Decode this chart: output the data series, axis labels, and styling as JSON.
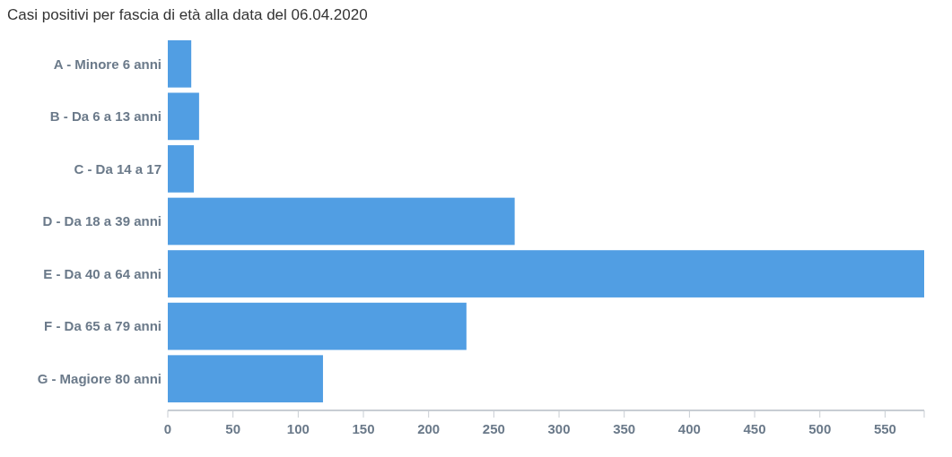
{
  "chart_data": {
    "type": "bar",
    "orientation": "horizontal",
    "title": "Casi positivi per fascia di età alla data del 06.04.2020",
    "categories": [
      "A - Minore 6 anni",
      "B - Da 6 a 13 anni",
      "C - Da 14 a 17",
      "D - Da 18 a 39 anni",
      "E - Da 40 a 64 anni",
      "F - Da 65 a 79 anni",
      "G - Magiore 80 anni"
    ],
    "values": [
      18,
      24,
      20,
      266,
      580,
      229,
      119
    ],
    "color": "#519ee3",
    "xlim": [
      0,
      580
    ],
    "xticks": [
      0,
      50,
      100,
      150,
      200,
      250,
      300,
      350,
      400,
      450,
      500,
      550
    ],
    "grid": false
  }
}
